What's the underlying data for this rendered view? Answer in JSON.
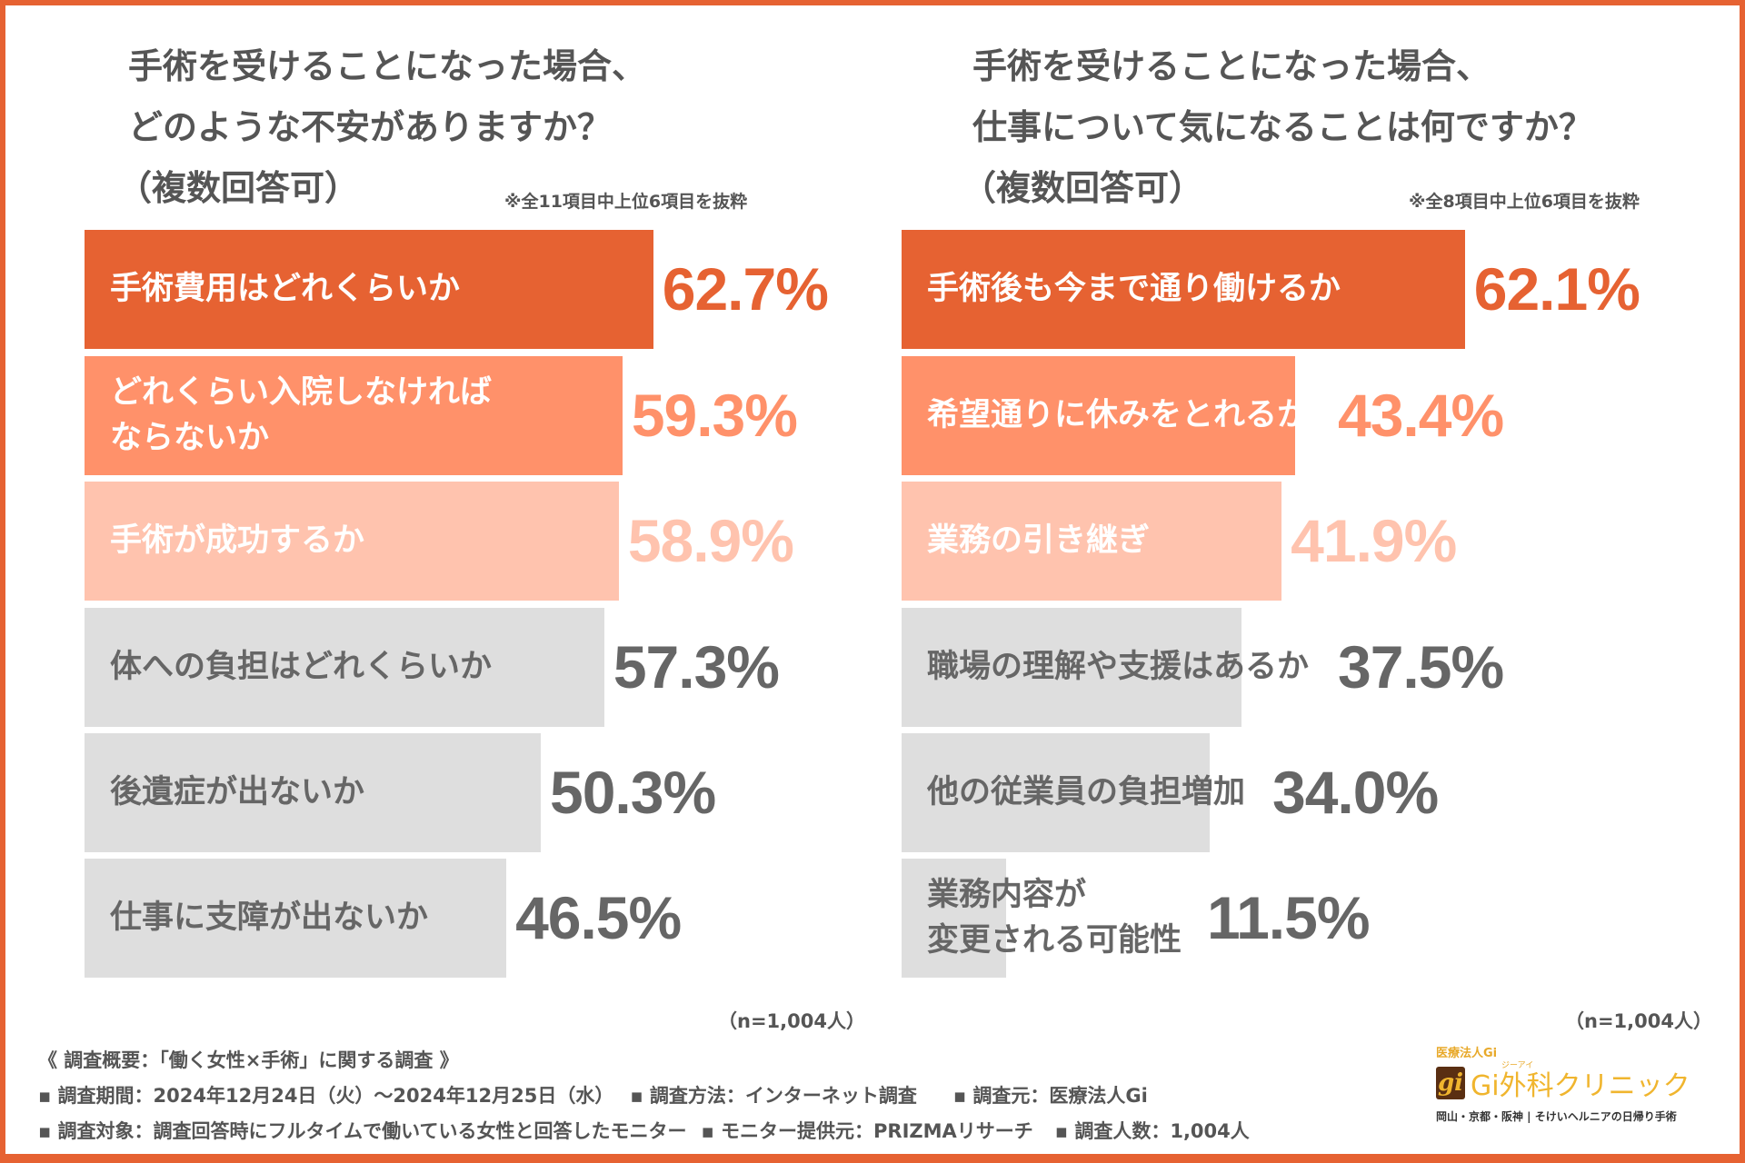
{
  "chart_data": [
    {
      "type": "bar",
      "title": [
        "手術を受けることになった場合、",
        "どのような不安がありますか？",
        "（複数回答可）"
      ],
      "note": "※全11項目中上位6項目を抜粋",
      "n": "（n=1,004人）",
      "categories": [
        [
          "手術費用はどれくらいか"
        ],
        [
          "どれくらい入院しなければ",
          "ならないか"
        ],
        [
          "手術が成功するか"
        ],
        [
          "体への負担はどれくらいか"
        ],
        [
          "後遺症が出ないか"
        ],
        [
          "仕事に支障が出ないか"
        ]
      ],
      "values": [
        62.7,
        59.3,
        58.9,
        57.3,
        50.3,
        46.5
      ],
      "unit": "%",
      "xlim": [
        0,
        100
      ]
    },
    {
      "type": "bar",
      "title": [
        "手術を受けることになった場合、",
        "仕事について気になることは何ですか？",
        "（複数回答可）"
      ],
      "note": "※全8項目中上位6項目を抜粋",
      "n": "（n=1,004人）",
      "categories": [
        [
          "手術後も今まで通り働けるか"
        ],
        [
          "希望通りに休みをとれるか"
        ],
        [
          "業務の引き継ぎ"
        ],
        [
          "職場の理解や支援はあるか"
        ],
        [
          "他の従業員の負担増加"
        ],
        [
          "業務内容が",
          "変更される可能性"
        ]
      ],
      "values": [
        62.1,
        43.4,
        41.9,
        37.5,
        34.0,
        11.5
      ],
      "unit": "%",
      "xlim": [
        0,
        100
      ]
    }
  ],
  "colors": {
    "bars": [
      "#e66232",
      "#ff916a",
      "#ffc3ae",
      "#dedede",
      "#dedede",
      "#dedede"
    ],
    "pct": [
      "#e66232",
      "#ff916a",
      "#ffc3ae",
      "#666666",
      "#666666",
      "#666666"
    ],
    "labels": [
      "#ffffff",
      "#ffffff",
      "#ffffff",
      "#666666",
      "#666666",
      "#666666"
    ],
    "border": "#e66232"
  },
  "footer": {
    "heading": "《 調査概要：「働く女性×手術」に関する調査 》",
    "line1": [
      "▪ 調査期間：2024年12月24日（火）～2024年12月25日（水）",
      "▪ 調査方法：インターネット調査",
      "▪ 調査元：医療法人Gi"
    ],
    "line2": [
      "▪ 調査対象：調査回答時にフルタイムで働いている女性と回答したモニター",
      "▪ モニター提供元：PRIZMAリサーチ",
      "▪ 調査人数：1,004人"
    ]
  },
  "logo": {
    "org": "医療法人Gi",
    "ruby": "ジーアイ",
    "name": "Gi外科クリニック",
    "tagline": "岡山・京都・阪神 | そけいヘルニアの日帰り手術"
  }
}
